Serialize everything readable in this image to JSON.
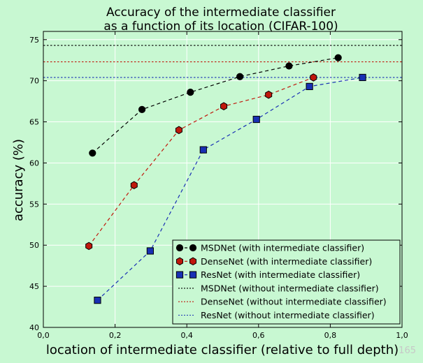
{
  "chart_data": {
    "type": "line",
    "title": [
      "Accuracy of the intermediate classifier",
      "as a function of its location (CIFAR-100)"
    ],
    "xlabel": "location of intermediate classifier (relative to full depth)",
    "ylabel": "accuracy (%)",
    "xlim": [
      0.0,
      1.0
    ],
    "ylim": [
      40,
      76
    ],
    "x_ticks": [
      "0,0",
      "0,2",
      "0,4",
      "0,6",
      "0,8",
      "1,0"
    ],
    "x_tick_values": [
      0.0,
      0.2,
      0.4,
      0.6,
      0.8,
      1.0
    ],
    "y_ticks": [
      "40",
      "45",
      "50",
      "55",
      "60",
      "65",
      "70",
      "75"
    ],
    "y_tick_values": [
      40,
      45,
      50,
      55,
      60,
      65,
      70,
      75
    ],
    "grid": true,
    "legend_position": "bottom-right",
    "series": [
      {
        "name": "MSDNet (with intermediate classifier)",
        "color": "#000000",
        "marker": "circle",
        "line": "dashed",
        "x": [
          0.137,
          0.275,
          0.41,
          0.548,
          0.685,
          0.822
        ],
        "y": [
          61.2,
          66.5,
          68.6,
          70.5,
          71.8,
          72.8
        ]
      },
      {
        "name": "DenseNet (with intermediate classifier)",
        "color": "#c0180c",
        "marker": "hexagon",
        "line": "dashed",
        "x": [
          0.127,
          0.253,
          0.378,
          0.503,
          0.628,
          0.753
        ],
        "y": [
          49.9,
          57.3,
          64.0,
          66.9,
          68.3,
          70.4
        ]
      },
      {
        "name": "ResNet (with intermediate classifier)",
        "color": "#1930b4",
        "marker": "square",
        "line": "dashed",
        "x": [
          0.151,
          0.298,
          0.446,
          0.594,
          0.742,
          0.89
        ],
        "y": [
          43.3,
          49.3,
          61.6,
          65.3,
          69.3,
          70.4
        ]
      }
    ],
    "reference_lines": [
      {
        "name": "MSDNet (without intermediate classifier)",
        "color": "#000000",
        "y": 74.3,
        "line": "dotted"
      },
      {
        "name": "DenseNet (without intermediate classifier)",
        "color": "#c0180c",
        "y": 72.3,
        "line": "dotted"
      },
      {
        "name": "ResNet (without intermediate classifier)",
        "color": "#1930b4",
        "y": 70.4,
        "line": "dotted"
      }
    ]
  },
  "watermark": "165",
  "colors": {
    "background": "#c8f8d2",
    "grid": "#ffffff",
    "axes": "#000000"
  }
}
